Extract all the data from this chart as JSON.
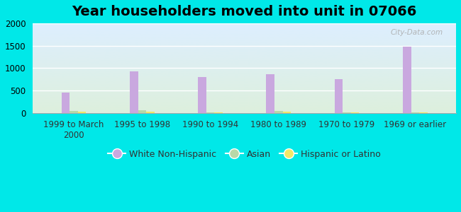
{
  "title": "Year householders moved into unit in 07066",
  "categories": [
    "1999 to March\n2000",
    "1995 to 1998",
    "1990 to 1994",
    "1980 to 1989",
    "1970 to 1979",
    "1969 or earlier"
  ],
  "white_non_hispanic": [
    450,
    930,
    800,
    860,
    750,
    1480
  ],
  "asian": [
    40,
    65,
    15,
    45,
    15,
    10
  ],
  "hispanic_or_latino": [
    25,
    30,
    10,
    30,
    20,
    15
  ],
  "bar_width": 0.12,
  "ylim": [
    0,
    2000
  ],
  "yticks": [
    0,
    500,
    1000,
    1500,
    2000
  ],
  "color_white": "#c9a8df",
  "color_asian": "#b8d8a8",
  "color_hispanic": "#f0e868",
  "bg_outer": "#00e8e8",
  "bg_plot_top": "#ddeeff",
  "bg_plot_bottom": "#ddf0dd",
  "title_fontsize": 14,
  "axis_fontsize": 8.5,
  "legend_fontsize": 9,
  "watermark": "City-Data.com"
}
